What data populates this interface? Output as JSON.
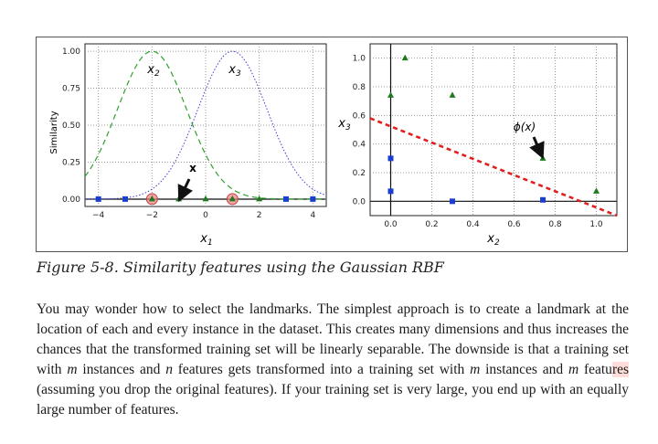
{
  "figure": {
    "caption": "Figure 5-8. Similarity features using the Gaussian RBF"
  },
  "chart_data": [
    {
      "type": "line",
      "ylabel": "Similarity",
      "xlabel": "x1",
      "xlim": [
        -4.5,
        4.5
      ],
      "ylim": [
        -0.05,
        1.05
      ],
      "xticks": [
        -4,
        -2,
        0,
        2,
        4
      ],
      "yticks": [
        "0.00",
        "0.25",
        "0.50",
        "0.75",
        "1.00"
      ],
      "grid": true,
      "series": [
        {
          "name": "x2",
          "landmark": -2,
          "color": "#2ca02c",
          "style": "dashed"
        },
        {
          "name": "x3",
          "landmark": 1,
          "color": "#3b3bd0",
          "style": "dotted"
        }
      ],
      "points_class0": [
        -4,
        -3,
        3,
        4
      ],
      "points_class1": [
        -1,
        0,
        2
      ],
      "landmarks": [
        -2,
        1
      ],
      "annotation": "x",
      "annotation_target": -1
    },
    {
      "type": "scatter",
      "xlabel": "x2",
      "ylabel": "x3",
      "xlim": [
        -0.1,
        1.1
      ],
      "ylim": [
        -0.1,
        1.1
      ],
      "xticks": [
        "0.0",
        "0.2",
        "0.4",
        "0.6",
        "0.8",
        "1.0"
      ],
      "yticks": [
        "0.0",
        "0.2",
        "0.4",
        "0.6",
        "0.8",
        "1.0"
      ],
      "grid": true,
      "class0": [
        [
          0.0,
          0.07
        ],
        [
          0.0,
          0.3
        ],
        [
          0.3,
          0.0
        ],
        [
          0.74,
          0.01
        ]
      ],
      "class1": [
        [
          0.0,
          0.74
        ],
        [
          0.07,
          1.0
        ],
        [
          0.3,
          0.74
        ],
        [
          0.74,
          0.3
        ],
        [
          1.0,
          0.07
        ]
      ],
      "boundary": [
        [
          -0.1,
          0.58
        ],
        [
          1.1,
          -0.1
        ]
      ],
      "annotation": "ϕ(x)",
      "annotation_target": [
        0.74,
        0.3
      ]
    }
  ],
  "body": {
    "l1": "You may wonder how to select the landmarks. The simplest approach is to create a",
    "l2": "landmark at the location of each and every instance in the dataset. This creates many",
    "l3": "dimensions and thus increases the chances that the transformed training set will be",
    "l4a": "linearly separable. The downside is that a training set with ",
    "m": "m",
    "l4b": " instances and ",
    "n": "n",
    "l4c": " features",
    "l5a": "gets transformed into a training set with ",
    "l5b": " instances and ",
    "l5c": " featu",
    "l5hl": "res",
    "l5d": " (assuming you",
    "l6": "drop the original features). If your training set is very large, you end up with an",
    "l7": "equally large number of features."
  }
}
